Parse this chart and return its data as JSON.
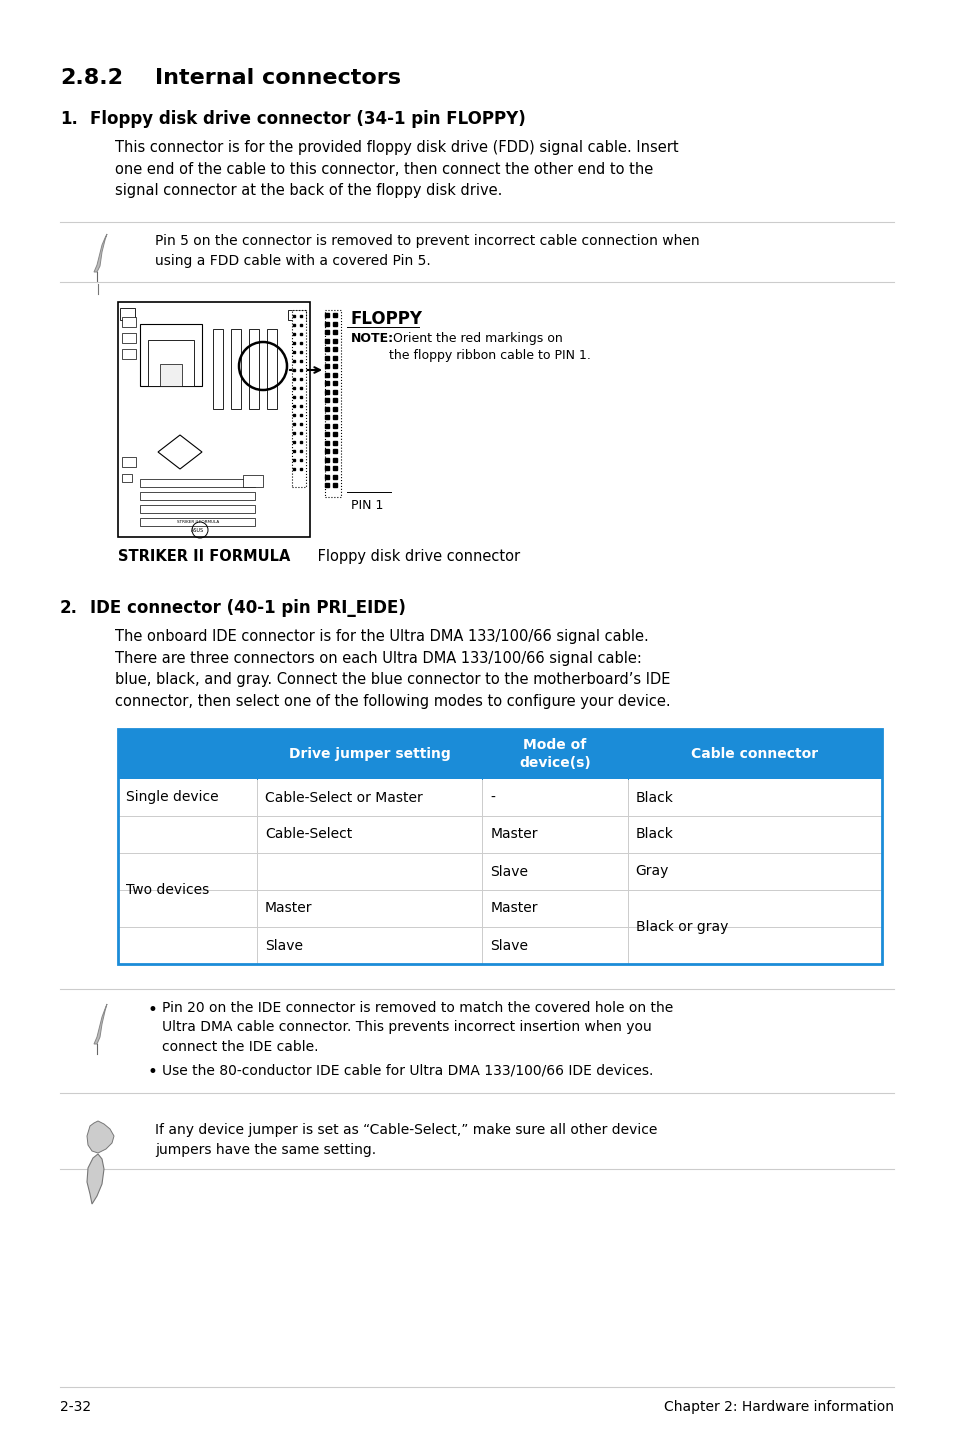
{
  "bg_color": "#ffffff",
  "section_title_num": "2.8.2",
  "section_title_text": "Internal connectors",
  "item1_num": "1.",
  "item1_title": "Floppy disk drive connector (34-1 pin FLOPPY)",
  "item1_body": "This connector is for the provided floppy disk drive (FDD) signal cable. Insert\none end of the cable to this connector, then connect the other end to the\nsignal connector at the back of the floppy disk drive.",
  "note1_text": "Pin 5 on the connector is removed to prevent incorrect cable connection when\nusing a FDD cable with a covered Pin 5.",
  "floppy_label": "FLOPPY",
  "floppy_note_bold": "NOTE:",
  "floppy_note_rest": " Orient the red markings on\nthe floppy ribbon cable to PIN 1.",
  "pin1_label": "PIN 1",
  "board_caption_bold": "STRIKER II FORMULA",
  "board_caption_rest": " Floppy disk drive connector",
  "item2_num": "2.",
  "item2_title": "IDE connector (40-1 pin PRI_EIDE)",
  "item2_body": "The onboard IDE connector is for the Ultra DMA 133/100/66 signal cable.\nThere are three connectors on each Ultra DMA 133/100/66 signal cable:\nblue, black, and gray. Connect the blue connector to the motherboard’s IDE\nconnector, then select one of the following modes to configure your device.",
  "table_header_bg": "#1b8cd8",
  "table_header_color": "#ffffff",
  "table_border_color": "#1b8cd8",
  "table_col1_header": "Drive jumper setting",
  "table_col2_header": "Mode of\ndevice(s)",
  "table_col3_header": "Cable connector",
  "note2_bullets": [
    "Pin 20 on the IDE connector is removed to match the covered hole on the\nUltra DMA cable connector. This prevents incorrect insertion when you\nconnect the IDE cable.",
    "Use the 80-conductor IDE cable for Ultra DMA 133/100/66 IDE devices."
  ],
  "caution_text": "If any device jumper is set as “Cable-Select,” make sure all other device\njumpers have the same setting.",
  "footer_left": "2-32",
  "footer_right": "Chapter 2: Hardware information",
  "line_color": "#cccccc",
  "text_color": "#000000"
}
